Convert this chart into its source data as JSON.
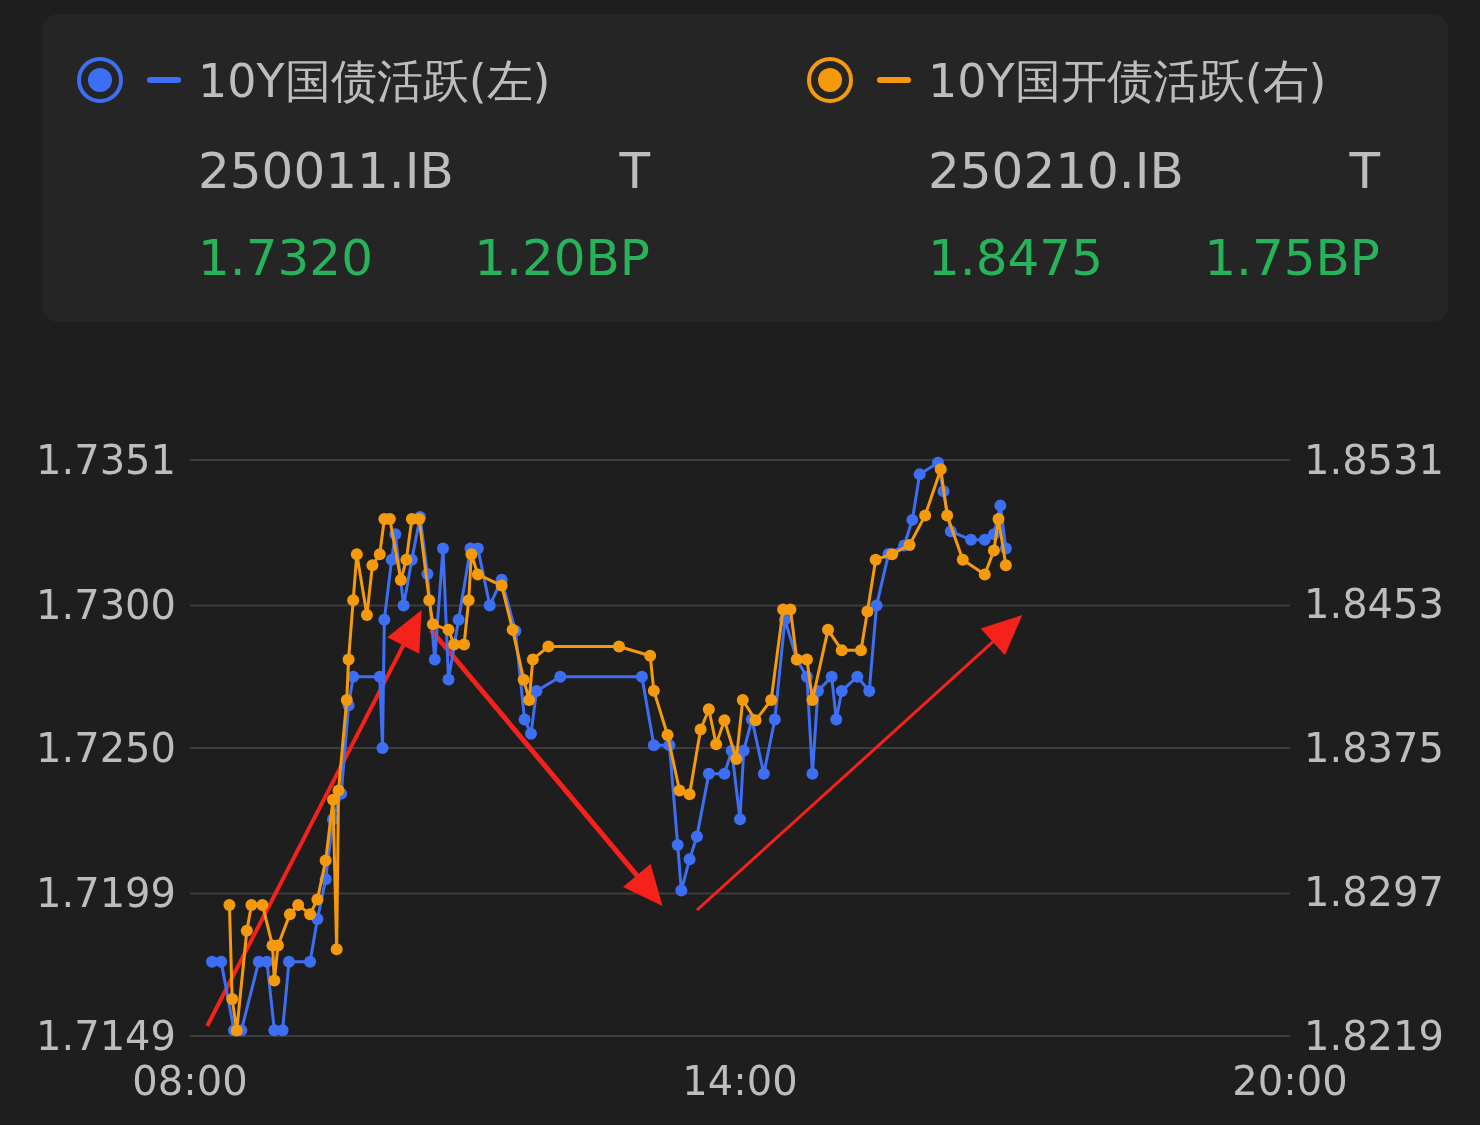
{
  "chart_data": {
    "type": "line",
    "xlim": [
      8,
      20
    ],
    "xticks": [
      {
        "value": 8,
        "label": "08:00"
      },
      {
        "value": 14,
        "label": "14:00"
      },
      {
        "value": 20,
        "label": "20:00"
      }
    ],
    "ylim": [
      1.7149,
      1.7351
    ],
    "yticks": [
      1.7149,
      1.7199,
      {
        "value": 1.725,
        "label": "1.7250"
      },
      {
        "value": 1.73,
        "label": "1.7300"
      },
      1.7351
    ],
    "y2lim": [
      1.8219,
      1.8531
    ],
    "y2ticks": [
      1.8219,
      1.8297,
      1.8375,
      1.8453,
      1.8531
    ],
    "grid": "y",
    "legend": "top",
    "marker": "circle",
    "annotations": [
      "250011.IB",
      "T",
      "1.7320",
      "1.20BP",
      "250210.IB",
      "T",
      "1.8475",
      "1.75BP"
    ],
    "series": [
      {
        "name": "10Y国债活跃(左)",
        "color": "#3d6ff5",
        "x": [
          8.24,
          8.34,
          8.48,
          8.56,
          8.75,
          8.84,
          8.92,
          9.01,
          9.08,
          9.31,
          9.39,
          9.48,
          9.56,
          9.65,
          9.73,
          9.78,
          10.07,
          10.1,
          10.12,
          10.2,
          10.24,
          10.33,
          10.42,
          10.51,
          10.59,
          10.67,
          10.76,
          10.82,
          10.93,
          11.06,
          11.14,
          11.27,
          11.4,
          11.55,
          11.65,
          11.72,
          11.78,
          12.04,
          12.93,
          13.06,
          13.23,
          13.32,
          13.36,
          13.45,
          13.53,
          13.66,
          13.83,
          13.91,
          14.0,
          14.04,
          14.13,
          14.26,
          14.38,
          14.49,
          14.62,
          14.73,
          14.79,
          14.85,
          15.0,
          15.05,
          15.11,
          15.28,
          15.41,
          15.49,
          15.62,
          15.79,
          15.88,
          15.96,
          16.16,
          16.22,
          16.3,
          16.52,
          16.67,
          16.77,
          16.84,
          16.9
        ],
        "values": [
          1.7175,
          1.7175,
          1.7151,
          1.7151,
          1.7175,
          1.7175,
          1.7151,
          1.7151,
          1.7175,
          1.7175,
          1.719,
          1.7204,
          1.7225,
          1.7234,
          1.7265,
          1.7275,
          1.7275,
          1.725,
          1.7295,
          1.7316,
          1.7325,
          1.73,
          1.7316,
          1.7331,
          1.7311,
          1.7281,
          1.732,
          1.7274,
          1.7295,
          1.732,
          1.732,
          1.73,
          1.7309,
          1.7291,
          1.726,
          1.7255,
          1.727,
          1.7275,
          1.7275,
          1.7251,
          1.7251,
          1.7216,
          1.72,
          1.7211,
          1.7219,
          1.7241,
          1.7241,
          1.7249,
          1.7225,
          1.7249,
          1.726,
          1.7241,
          1.726,
          1.7295,
          1.7281,
          1.7275,
          1.7241,
          1.727,
          1.7275,
          1.726,
          1.727,
          1.7275,
          1.727,
          1.73,
          1.7318,
          1.7321,
          1.733,
          1.7346,
          1.735,
          1.734,
          1.7326,
          1.7323,
          1.7323,
          1.7325,
          1.7335,
          1.732
        ]
      },
      {
        "name": "10Y国开债活跃(右)",
        "color": "#f59a0c",
        "axis": "y2",
        "x": [
          8.43,
          8.46,
          8.51,
          8.62,
          8.67,
          8.79,
          8.9,
          8.92,
          8.96,
          9.09,
          9.18,
          9.31,
          9.39,
          9.48,
          9.56,
          9.6,
          9.62,
          9.71,
          9.73,
          9.78,
          9.82,
          9.93,
          9.99,
          10.07,
          10.12,
          10.18,
          10.3,
          10.36,
          10.42,
          10.5,
          10.61,
          10.65,
          10.82,
          10.88,
          10.99,
          11.04,
          11.07,
          11.14,
          11.4,
          11.52,
          11.64,
          11.7,
          11.74,
          11.91,
          12.68,
          13.02,
          13.06,
          13.21,
          13.34,
          13.45,
          13.57,
          13.66,
          13.74,
          13.83,
          13.96,
          14.03,
          14.17,
          14.34,
          14.47,
          14.55,
          14.62,
          14.73,
          14.79,
          14.96,
          15.11,
          15.32,
          15.39,
          15.48,
          15.66,
          15.85,
          16.02,
          16.19,
          16.26,
          16.43,
          16.67,
          16.77,
          16.82,
          16.9
        ],
        "values": [
          1.829,
          1.8239,
          1.8222,
          1.8276,
          1.829,
          1.829,
          1.8268,
          1.8249,
          1.8268,
          1.8285,
          1.829,
          1.8285,
          1.8293,
          1.8314,
          1.8347,
          1.8266,
          1.8352,
          1.8401,
          1.8423,
          1.8455,
          1.848,
          1.8447,
          1.8474,
          1.848,
          1.8499,
          1.8499,
          1.8466,
          1.8477,
          1.8499,
          1.8499,
          1.8455,
          1.8442,
          1.8439,
          1.8431,
          1.8431,
          1.8455,
          1.848,
          1.8469,
          1.8463,
          1.8439,
          1.8412,
          1.8401,
          1.8423,
          1.843,
          1.843,
          1.8425,
          1.8406,
          1.8382,
          1.8352,
          1.835,
          1.8385,
          1.8396,
          1.8377,
          1.839,
          1.8369,
          1.8401,
          1.839,
          1.8401,
          1.845,
          1.845,
          1.8423,
          1.8423,
          1.8401,
          1.8439,
          1.8428,
          1.8428,
          1.8449,
          1.8477,
          1.848,
          1.8485,
          1.8501,
          1.8526,
          1.8501,
          1.8477,
          1.8469,
          1.8482,
          1.8499,
          1.8474
        ]
      }
    ]
  }
}
